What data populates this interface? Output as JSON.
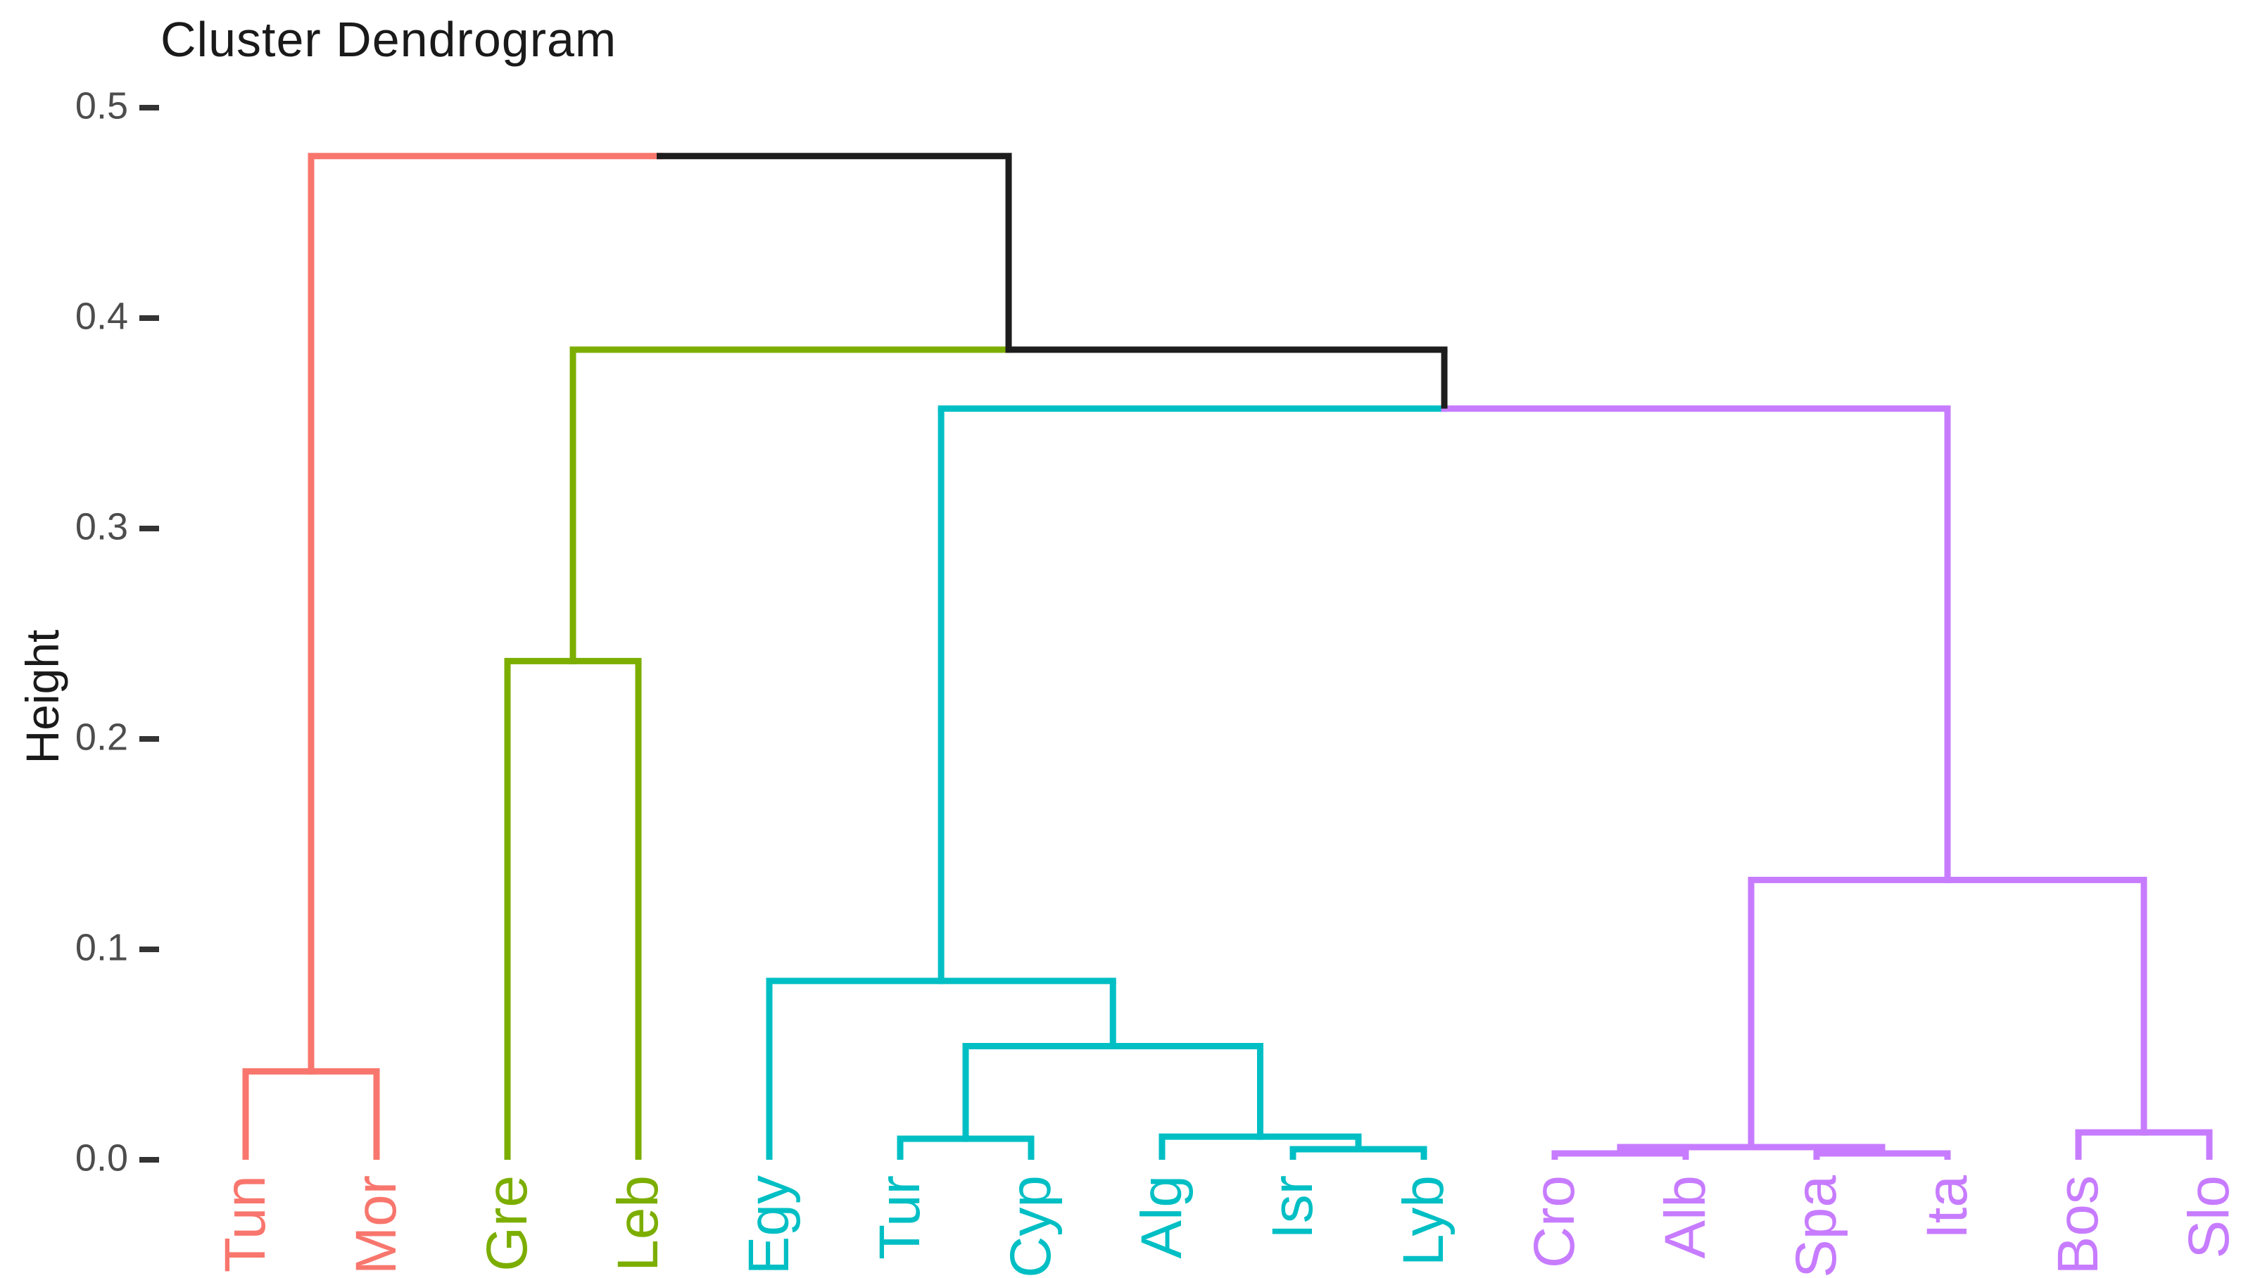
{
  "title": "Cluster Dendrogram",
  "y_axis": {
    "label": "Height",
    "ticks": [
      {
        "label": "0.5",
        "value": 0.5
      },
      {
        "label": "0.4",
        "value": 0.4
      },
      {
        "label": "0.3",
        "value": 0.3
      },
      {
        "label": "0.2",
        "value": 0.2
      },
      {
        "label": "0.1",
        "value": 0.1
      },
      {
        "label": "0.0",
        "value": 0.0
      }
    ],
    "range": [
      0.0,
      0.5
    ],
    "text_color": "#4D4D4D",
    "tick_color": "#333333"
  },
  "styles": {
    "background": "#FFFFFF",
    "title_color": "#1A1A1A",
    "axis_title_color": "#1A1A1A"
  },
  "chart_data": {
    "type": "dendrogram",
    "title": "Cluster Dendrogram",
    "ylabel": "Height",
    "ylim": [
      0.0,
      0.5
    ],
    "grid": "off",
    "legend": "none",
    "orientation": "leaves-bottom",
    "above_cluster_color": "#1D1D1D",
    "clusters": [
      {
        "name": "cluster-1",
        "color": "#F8766D",
        "members": [
          "Tun",
          "Mor"
        ]
      },
      {
        "name": "cluster-2",
        "color": "#7CAE00",
        "members": [
          "Gre",
          "Leb"
        ]
      },
      {
        "name": "cluster-3",
        "color": "#00BFC4",
        "members": [
          "Egy",
          "Tur",
          "Cyp",
          "Alg",
          "Isr",
          "Lyb"
        ]
      },
      {
        "name": "cluster-4",
        "color": "#C77CFF",
        "members": [
          "Cro",
          "Alb",
          "Spa",
          "Ita",
          "Bos",
          "Slo"
        ]
      }
    ],
    "leaves": [
      {
        "label": "Tun",
        "color": "#F8766D"
      },
      {
        "label": "Mor",
        "color": "#F8766D"
      },
      {
        "label": "Gre",
        "color": "#7CAE00"
      },
      {
        "label": "Leb",
        "color": "#7CAE00"
      },
      {
        "label": "Egy",
        "color": "#00BFC4"
      },
      {
        "label": "Tur",
        "color": "#00BFC4"
      },
      {
        "label": "Cyp",
        "color": "#00BFC4"
      },
      {
        "label": "Alg",
        "color": "#00BFC4"
      },
      {
        "label": "Isr",
        "color": "#00BFC4"
      },
      {
        "label": "Lyb",
        "color": "#00BFC4"
      },
      {
        "label": "Cro",
        "color": "#C77CFF"
      },
      {
        "label": "Alb",
        "color": "#C77CFF"
      },
      {
        "label": "Spa",
        "color": "#C77CFF"
      },
      {
        "label": "Ita",
        "color": "#C77CFF"
      },
      {
        "label": "Bos",
        "color": "#C77CFF"
      },
      {
        "label": "Slo",
        "color": "#C77CFF"
      }
    ],
    "merges": [
      {
        "id": "n1",
        "children": [
          "Tun",
          "Mor"
        ],
        "height": 0.042,
        "color": "#F8766D"
      },
      {
        "id": "n2",
        "children": [
          "Gre",
          "Leb"
        ],
        "height": 0.237,
        "color": "#7CAE00"
      },
      {
        "id": "n3",
        "children": [
          "Tur",
          "Cyp"
        ],
        "height": 0.01,
        "color": "#00BFC4"
      },
      {
        "id": "n4",
        "children": [
          "Isr",
          "Lyb"
        ],
        "height": 0.005,
        "color": "#00BFC4"
      },
      {
        "id": "n5",
        "children": [
          "Alg",
          "n4"
        ],
        "height": 0.011,
        "color": "#00BFC4"
      },
      {
        "id": "n6",
        "children": [
          "n3",
          "n5"
        ],
        "height": 0.054,
        "color": "#00BFC4"
      },
      {
        "id": "n7",
        "children": [
          "Egy",
          "n6"
        ],
        "height": 0.085,
        "color": "#00BFC4"
      },
      {
        "id": "n8",
        "children": [
          "Cro",
          "Alb"
        ],
        "height": 0.003,
        "color": "#C77CFF"
      },
      {
        "id": "n9",
        "children": [
          "Spa",
          "Ita"
        ],
        "height": 0.003,
        "color": "#C77CFF"
      },
      {
        "id": "n10",
        "children": [
          "n8",
          "n9"
        ],
        "height": 0.006,
        "color": "#C77CFF"
      },
      {
        "id": "n11",
        "children": [
          "Bos",
          "Slo"
        ],
        "height": 0.013,
        "color": "#C77CFF"
      },
      {
        "id": "n12",
        "children": [
          "n10",
          "n11"
        ],
        "height": 0.133,
        "color": "#C77CFF"
      },
      {
        "id": "n13",
        "children": [
          "n7",
          "n12"
        ],
        "height": 0.357,
        "color": "#1D1D1D"
      },
      {
        "id": "n14",
        "children": [
          "n2",
          "n13"
        ],
        "height": 0.385,
        "color": "#1D1D1D"
      },
      {
        "id": "n15",
        "children": [
          "n1",
          "n14"
        ],
        "height": 0.477,
        "color": "#1D1D1D"
      }
    ]
  }
}
